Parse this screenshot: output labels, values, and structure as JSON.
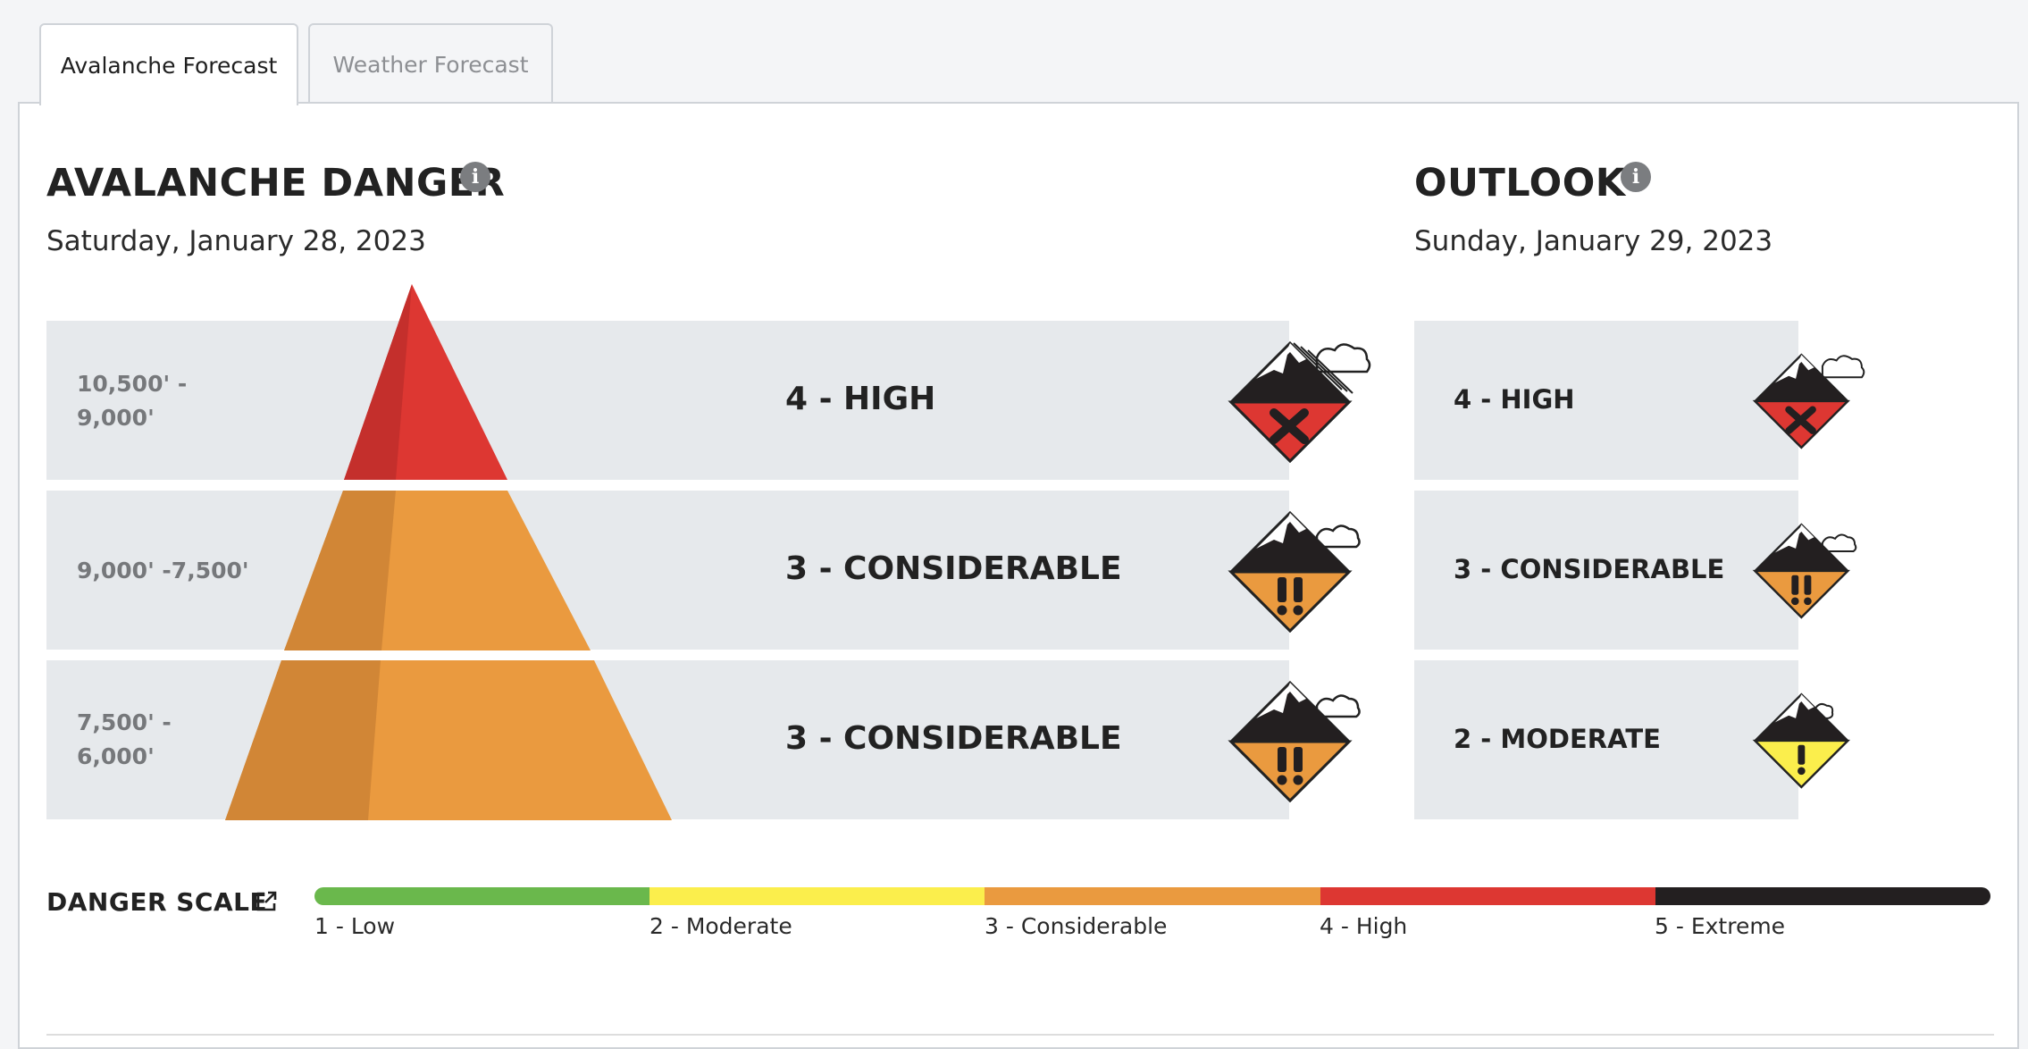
{
  "tabs": [
    {
      "label": "Avalanche Forecast",
      "active": true
    },
    {
      "label": "Weather Forecast",
      "active": false
    }
  ],
  "danger": {
    "title": "AVALANCHE DANGER",
    "info_icon": "info-icon",
    "date": "Saturday, January 28, 2023",
    "rows": [
      {
        "elevation": "10,500' -\n9,000'",
        "rating": "4 - HIGH",
        "level": 4
      },
      {
        "elevation": "9,000' -7,500'",
        "rating": "3 - CONSIDERABLE",
        "level": 3
      },
      {
        "elevation": "7,500' -\n6,000'",
        "rating": "3 - CONSIDERABLE",
        "level": 3
      }
    ]
  },
  "outlook": {
    "title": "OUTLOOK",
    "info_icon": "info-icon",
    "date": "Sunday, January 29, 2023",
    "rows": [
      {
        "rating": "4 - HIGH",
        "level": 4
      },
      {
        "rating": "3 - CONSIDERABLE",
        "level": 3
      },
      {
        "rating": "2 - MODERATE",
        "level": 2
      }
    ]
  },
  "danger_scale": {
    "label": "DANGER SCALE",
    "link_icon": "external-link-icon",
    "levels": [
      {
        "label": "1 - Low",
        "color": "#6ab84c"
      },
      {
        "label": "2 - Moderate",
        "color": "#fbee4c"
      },
      {
        "label": "3 - Considerable",
        "color": "#ea9a3f"
      },
      {
        "label": "4 - High",
        "color": "#dd3732"
      },
      {
        "label": "5 - Extreme",
        "color": "#231f20"
      }
    ]
  },
  "colors": {
    "high": "#dd3732",
    "considerable": "#ea9a3f",
    "moderate": "#fbee4c",
    "band_bg": "#e6e9ec"
  }
}
